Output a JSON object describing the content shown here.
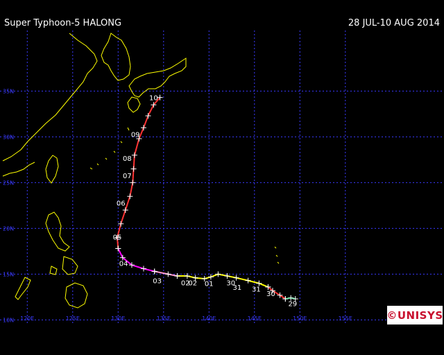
{
  "header": {
    "title": "Super Typhoon-5 HALONG",
    "date_range": "28 JUL-10 AUG 2014"
  },
  "logo": {
    "text": "©UNISYS"
  },
  "map": {
    "lon_labels": [
      "120E",
      "125E",
      "130E",
      "135E",
      "140E",
      "145E",
      "150E",
      "155E"
    ],
    "lat_labels": [
      "35N",
      "30N",
      "25N",
      "20N",
      "15N",
      "10N"
    ],
    "colors": {
      "land_outline": "#ffff00",
      "grid": "#3a3aff",
      "background": "#000000",
      "depression": "#00cc66",
      "storm": "#ffff00",
      "typhoon_cat1": "#ff3333",
      "typhoon_cat2": "#ff9999",
      "typhoon_cat4": "#ff00ff",
      "label": "#ffffff"
    },
    "track_segments": [
      {
        "intensity": "depression",
        "color": "#00cc66",
        "points": [
          [
            149.5,
            12.3
          ],
          [
            149.0,
            12.4
          ],
          [
            148.4,
            12.3
          ]
        ]
      },
      {
        "intensity": "typhoon",
        "color": "#ff3333",
        "points": [
          [
            148.4,
            12.3
          ],
          [
            147.8,
            12.7
          ],
          [
            147.0,
            13.2
          ],
          [
            146.5,
            13.6
          ]
        ]
      },
      {
        "intensity": "tropical storm",
        "color": "#ffff00",
        "points": [
          [
            146.5,
            13.6
          ],
          [
            145.5,
            14.0
          ],
          [
            144.3,
            14.3
          ],
          [
            143.0,
            14.6
          ],
          [
            142.0,
            14.8
          ],
          [
            141.0,
            15.0
          ],
          [
            140.2,
            14.7
          ],
          [
            139.5,
            14.5
          ],
          [
            138.5,
            14.6
          ],
          [
            137.6,
            14.8
          ],
          [
            136.5,
            14.8
          ]
        ]
      },
      {
        "intensity": "typhoon",
        "color": "#ff99cc",
        "points": [
          [
            136.5,
            14.8
          ],
          [
            135.5,
            15.0
          ],
          [
            134.0,
            15.3
          ]
        ]
      },
      {
        "intensity": "super typhoon",
        "color": "#ff00ff",
        "points": [
          [
            134.0,
            15.3
          ],
          [
            132.8,
            15.6
          ],
          [
            131.5,
            16.0
          ],
          [
            130.5,
            16.8
          ],
          [
            130.0,
            17.8
          ]
        ]
      },
      {
        "intensity": "typhoon",
        "color": "#ff3333",
        "points": [
          [
            130.0,
            17.8
          ],
          [
            129.9,
            19.0
          ],
          [
            130.3,
            20.5
          ],
          [
            130.8,
            22.0
          ],
          [
            131.3,
            23.5
          ],
          [
            131.6,
            25.0
          ],
          [
            131.7,
            26.5
          ],
          [
            131.8,
            28.0
          ],
          [
            132.3,
            29.8
          ],
          [
            132.8,
            31.0
          ],
          [
            133.3,
            32.3
          ],
          [
            133.9,
            33.5
          ],
          [
            134.6,
            34.3
          ]
        ]
      }
    ],
    "day_labels": [
      {
        "text": "29",
        "lon": 149.2,
        "lat": 11.8
      },
      {
        "text": "30",
        "lon": 146.8,
        "lat": 12.9
      },
      {
        "text": "31",
        "lon": 143.1,
        "lat": 13.6
      },
      {
        "text": "30",
        "lon": 142.4,
        "lat": 14.1
      },
      {
        "text": "01",
        "lon": 140.0,
        "lat": 14.0
      },
      {
        "text": "02",
        "lon": 138.2,
        "lat": 14.1
      },
      {
        "text": "31",
        "lon": 145.2,
        "lat": 13.4
      },
      {
        "text": "02",
        "lon": 137.4,
        "lat": 14.1
      },
      {
        "text": "03",
        "lon": 134.3,
        "lat": 14.3
      },
      {
        "text": "04",
        "lon": 130.6,
        "lat": 16.2
      },
      {
        "text": "05",
        "lon": 129.9,
        "lat": 19.1
      },
      {
        "text": "06",
        "lon": 130.3,
        "lat": 22.8
      },
      {
        "text": "07",
        "lon": 131.0,
        "lat": 25.8
      },
      {
        "text": "08",
        "lon": 131.0,
        "lat": 27.7
      },
      {
        "text": "09",
        "lon": 131.9,
        "lat": 30.3
      },
      {
        "text": "10",
        "lon": 133.9,
        "lat": 34.3
      }
    ]
  }
}
